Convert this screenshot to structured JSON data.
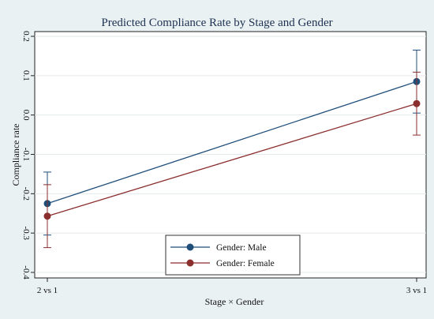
{
  "chart_data": {
    "type": "line",
    "title": "Predicted Compliance Rate by Stage and Gender",
    "xlabel": "Stage × Gender",
    "ylabel": "Compliance rate",
    "categories": [
      "2 vs 1",
      "3 vs 1"
    ],
    "ylim": [
      -0.4,
      0.2
    ],
    "yticks": [
      -0.4,
      -0.3,
      -0.2,
      -0.1,
      0.0,
      0.1,
      0.2
    ],
    "ytick_labels": [
      "-0.4",
      "-0.3",
      "-0.2",
      "-0.1",
      "0.0",
      "0.1",
      "0.2"
    ],
    "grid": true,
    "legend_position": "bottom-center",
    "error_bars": true,
    "series": [
      {
        "name": "Gender: Male",
        "color": "#1f4e79",
        "values": [
          -0.225,
          0.085
        ],
        "ci_low": [
          -0.305,
          0.005
        ],
        "ci_high": [
          -0.145,
          0.165
        ]
      },
      {
        "name": "Gender: Female",
        "color": "#8b2e2e",
        "values": [
          -0.257,
          0.029
        ],
        "ci_low": [
          -0.337,
          -0.051
        ],
        "ci_high": [
          -0.177,
          0.109
        ]
      }
    ]
  }
}
